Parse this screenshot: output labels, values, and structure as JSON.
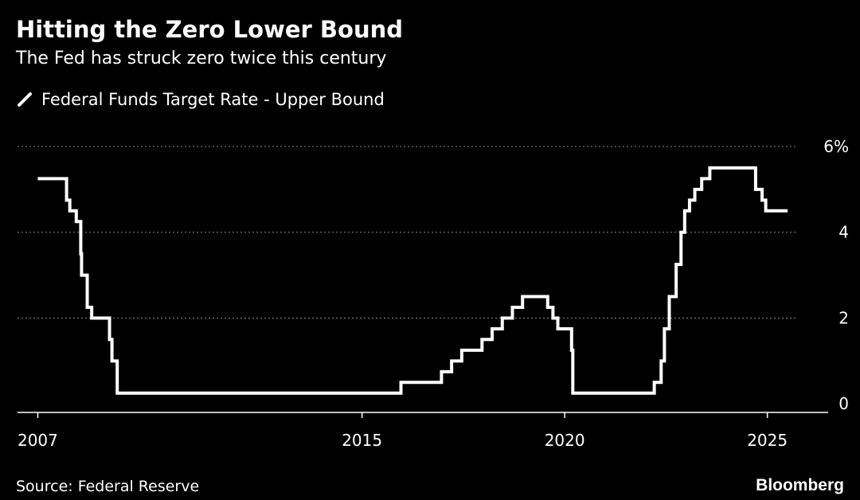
{
  "title": "Hitting the Zero Lower Bound",
  "subtitle": "The Fed has struck zero twice this century",
  "source": "Source: Federal Reserve",
  "brand": "Bloomberg",
  "colors": {
    "background": "#000000",
    "line": "#ffffff",
    "grid": "#8a8a8a",
    "text": "#ffffff"
  },
  "chart_data": {
    "type": "line",
    "series": [
      {
        "name": "Federal Funds Target Rate - Upper Bound",
        "step": true,
        "points": [
          [
            2007.0,
            5.25
          ],
          [
            2007.71,
            4.75
          ],
          [
            2007.79,
            4.5
          ],
          [
            2007.95,
            4.25
          ],
          [
            2008.06,
            3.5
          ],
          [
            2008.08,
            3.0
          ],
          [
            2008.22,
            2.25
          ],
          [
            2008.33,
            2.0
          ],
          [
            2008.77,
            1.5
          ],
          [
            2008.83,
            1.0
          ],
          [
            2008.96,
            0.25
          ],
          [
            2015.96,
            0.5
          ],
          [
            2016.96,
            0.75
          ],
          [
            2017.21,
            1.0
          ],
          [
            2017.46,
            1.25
          ],
          [
            2017.96,
            1.5
          ],
          [
            2018.21,
            1.75
          ],
          [
            2018.46,
            2.0
          ],
          [
            2018.71,
            2.25
          ],
          [
            2018.96,
            2.5
          ],
          [
            2019.58,
            2.25
          ],
          [
            2019.71,
            2.0
          ],
          [
            2019.83,
            1.75
          ],
          [
            2020.17,
            1.25
          ],
          [
            2020.2,
            0.25
          ],
          [
            2022.21,
            0.5
          ],
          [
            2022.38,
            1.0
          ],
          [
            2022.46,
            1.75
          ],
          [
            2022.58,
            2.5
          ],
          [
            2022.75,
            3.25
          ],
          [
            2022.87,
            4.0
          ],
          [
            2022.96,
            4.5
          ],
          [
            2023.08,
            4.75
          ],
          [
            2023.21,
            5.0
          ],
          [
            2023.38,
            5.25
          ],
          [
            2023.58,
            5.5
          ],
          [
            2024.71,
            5.0
          ],
          [
            2024.87,
            4.75
          ],
          [
            2024.96,
            4.5
          ],
          [
            2025.5,
            4.5
          ]
        ]
      }
    ],
    "x_ticks": [
      {
        "value": 2007,
        "label": "2007"
      },
      {
        "value": 2015,
        "label": "2015"
      },
      {
        "value": 2020,
        "label": "2020"
      },
      {
        "value": 2025,
        "label": "2025"
      }
    ],
    "y_ticks": [
      {
        "value": 0,
        "label": "0"
      },
      {
        "value": 2,
        "label": "2"
      },
      {
        "value": 4,
        "label": "4"
      },
      {
        "value": 6,
        "label": "6%"
      }
    ],
    "xlim": [
      2006.5,
      2026.5
    ],
    "ylim": [
      -0.2,
      6
    ],
    "grid": true,
    "legend_position": "top-left"
  }
}
